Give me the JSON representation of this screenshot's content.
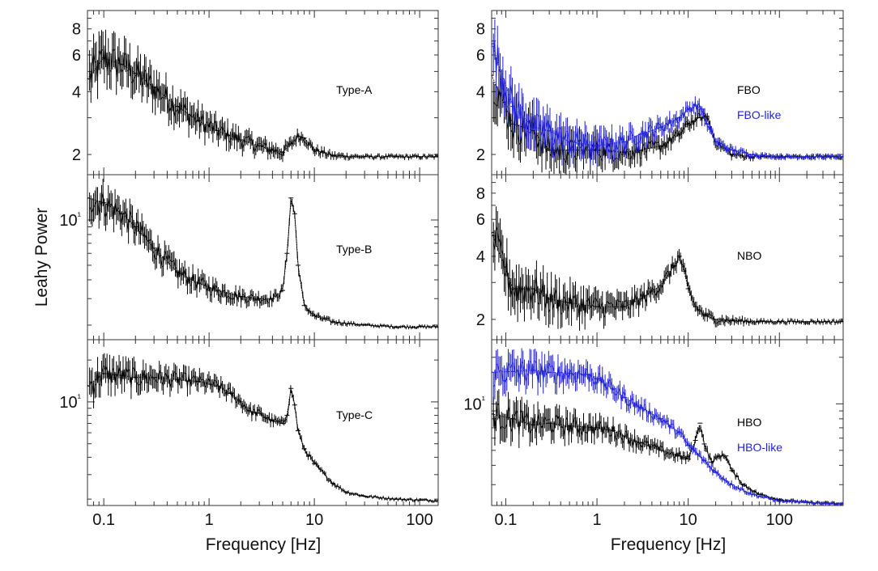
{
  "ylabel": "Leahy Power",
  "xlabel": "Frequency [Hz]",
  "colors": {
    "series_black": "#000000",
    "series_blue": "#1f1fd9",
    "frame": "#333333"
  },
  "chart_data": [
    {
      "id": "type-a",
      "type": "line",
      "log_x": true,
      "log_y": true,
      "xlim": [
        0.07,
        150
      ],
      "ylim": [
        1.6,
        9.8
      ],
      "x_ticks": [
        "0.1",
        "1",
        "10",
        "100"
      ],
      "y_ticks": [
        "2",
        "4",
        "6",
        "8"
      ],
      "series": [
        {
          "name": "Type-A",
          "color": "#000000",
          "x": [
            0.07,
            0.1,
            0.15,
            0.2,
            0.3,
            0.5,
            0.8,
            1.2,
            2,
            3,
            4,
            5,
            6,
            7,
            8,
            10,
            15,
            30,
            60,
            100,
            150
          ],
          "y": [
            4.6,
            5.8,
            5.4,
            4.9,
            4.2,
            3.4,
            2.9,
            2.6,
            2.35,
            2.2,
            2.1,
            2.05,
            2.25,
            2.45,
            2.4,
            2.1,
            1.97,
            1.95,
            1.95,
            1.95,
            1.95
          ]
        }
      ]
    },
    {
      "id": "type-b",
      "type": "line",
      "log_x": true,
      "log_y": true,
      "xlim": [
        0.07,
        150
      ],
      "ylim": [
        1.6,
        20
      ],
      "x_ticks": [
        "0.1",
        "1",
        "10",
        "100"
      ],
      "y_ticks": [
        "10¹"
      ],
      "series": [
        {
          "name": "Type-B",
          "color": "#000000",
          "x": [
            0.07,
            0.1,
            0.15,
            0.2,
            0.3,
            0.5,
            0.8,
            1.2,
            2,
            3,
            4,
            5,
            5.5,
            6,
            6.5,
            7,
            8,
            10,
            15,
            30,
            60,
            100,
            150
          ],
          "y": [
            14,
            13,
            11,
            9,
            6.5,
            4.5,
            3.8,
            3.4,
            3.1,
            3.0,
            3.0,
            3.4,
            6,
            14,
            11,
            5,
            2.7,
            2.3,
            2.1,
            2.0,
            1.95,
            1.95,
            1.95
          ]
        }
      ]
    },
    {
      "id": "type-c",
      "type": "line",
      "log_x": true,
      "log_y": true,
      "xlim": [
        0.07,
        150
      ],
      "ylim": [
        1.8,
        28
      ],
      "x_ticks": [
        "0.1",
        "1",
        "10",
        "100"
      ],
      "y_ticks": [
        "10¹"
      ],
      "series": [
        {
          "name": "Type-C",
          "color": "#000000",
          "x": [
            0.07,
            0.1,
            0.15,
            0.2,
            0.3,
            0.5,
            0.8,
            1.2,
            1.6,
            2,
            2.5,
            3,
            3.5,
            4,
            5,
            5.5,
            6,
            6.5,
            7,
            8,
            10,
            15,
            20,
            30,
            60,
            100,
            150
          ],
          "y": [
            13,
            16,
            15.5,
            15,
            15,
            14.5,
            14,
            13,
            11.5,
            10,
            8.5,
            8.3,
            7.7,
            7.3,
            7.0,
            8.0,
            12.5,
            9.5,
            6.2,
            4.6,
            3.6,
            2.6,
            2.25,
            2.1,
            2.0,
            1.97,
            1.95
          ]
        }
      ]
    },
    {
      "id": "fbo",
      "type": "line",
      "log_x": true,
      "log_y": true,
      "xlim": [
        0.07,
        500
      ],
      "ylim": [
        1.6,
        9.8
      ],
      "x_ticks": [
        "0.1",
        "1",
        "10",
        "100"
      ],
      "y_ticks": [
        "2",
        "4",
        "6",
        "8"
      ],
      "series": [
        {
          "name": "FBO",
          "color": "#000000",
          "x": [
            0.07,
            0.12,
            0.2,
            0.3,
            0.5,
            1,
            2,
            3,
            5,
            8,
            10,
            13,
            16,
            20,
            30,
            50,
            100,
            200,
            500
          ],
          "y": [
            4.8,
            2.8,
            2.6,
            2.1,
            2.1,
            2.1,
            2.05,
            2.1,
            2.2,
            2.5,
            2.8,
            3.0,
            3.05,
            2.3,
            2.0,
            1.95,
            1.95,
            1.95,
            1.95
          ]
        },
        {
          "name": "FBO-like",
          "color": "#1f1fd9",
          "x": [
            0.07,
            0.12,
            0.2,
            0.3,
            0.5,
            1,
            2,
            3,
            5,
            8,
            10,
            12,
            14,
            16,
            20,
            30,
            50,
            100,
            200,
            500
          ],
          "y": [
            6.8,
            3.4,
            2.7,
            2.6,
            2.3,
            2.2,
            2.3,
            2.5,
            2.7,
            3.0,
            3.3,
            3.45,
            3.3,
            2.8,
            2.3,
            2.1,
            2.0,
            1.95,
            1.95,
            1.95
          ]
        }
      ]
    },
    {
      "id": "nbo",
      "type": "line",
      "log_x": true,
      "log_y": true,
      "xlim": [
        0.07,
        500
      ],
      "ylim": [
        1.6,
        9.8
      ],
      "x_ticks": [
        "0.1",
        "1",
        "10",
        "100"
      ],
      "y_ticks": [
        "2",
        "4",
        "6",
        "8"
      ],
      "series": [
        {
          "name": "NBO",
          "color": "#000000",
          "x": [
            0.07,
            0.12,
            0.2,
            0.3,
            0.5,
            1,
            2,
            3,
            5,
            7,
            8,
            9,
            10,
            12,
            15,
            20,
            30,
            60,
            100,
            200,
            500
          ],
          "y": [
            5.2,
            2.8,
            2.8,
            2.5,
            2.4,
            2.3,
            2.3,
            2.5,
            2.9,
            3.6,
            4.0,
            3.4,
            2.8,
            2.3,
            2.1,
            2.0,
            1.97,
            1.95,
            1.95,
            1.95,
            1.95
          ]
        }
      ]
    },
    {
      "id": "hbo",
      "type": "line",
      "log_x": true,
      "log_y": true,
      "xlim": [
        0.07,
        500
      ],
      "ylim": [
        2.2,
        26
      ],
      "x_ticks": [
        "0.1",
        "1",
        "10",
        "100"
      ],
      "y_ticks": [
        "10¹"
      ],
      "series": [
        {
          "name": "HBO",
          "color": "#000000",
          "x": [
            0.07,
            0.12,
            0.2,
            0.3,
            0.5,
            1,
            1.5,
            2,
            3,
            5,
            8,
            10,
            12,
            13.5,
            15,
            18,
            22,
            26,
            30,
            40,
            60,
            100,
            200,
            500
          ],
          "y": [
            8.6,
            8.0,
            7.3,
            7.5,
            7.2,
            7.0,
            6.7,
            6.2,
            5.6,
            5.0,
            4.6,
            4.4,
            5.8,
            7.5,
            5.5,
            4.2,
            4.6,
            4.6,
            3.7,
            3.0,
            2.6,
            2.4,
            2.3,
            2.25
          ]
        },
        {
          "name": "HBO-like",
          "color": "#1f1fd9",
          "x": [
            0.07,
            0.12,
            0.2,
            0.3,
            0.5,
            0.8,
            1,
            1.5,
            2,
            3,
            5,
            8,
            10,
            15,
            20,
            30,
            50,
            100,
            200,
            500
          ],
          "y": [
            16,
            16.2,
            16.5,
            16,
            15.8,
            15.5,
            14.5,
            12.5,
            11,
            9.5,
            8.0,
            6.5,
            5.4,
            4.3,
            3.6,
            3.0,
            2.6,
            2.35,
            2.3,
            2.25
          ]
        }
      ]
    }
  ]
}
